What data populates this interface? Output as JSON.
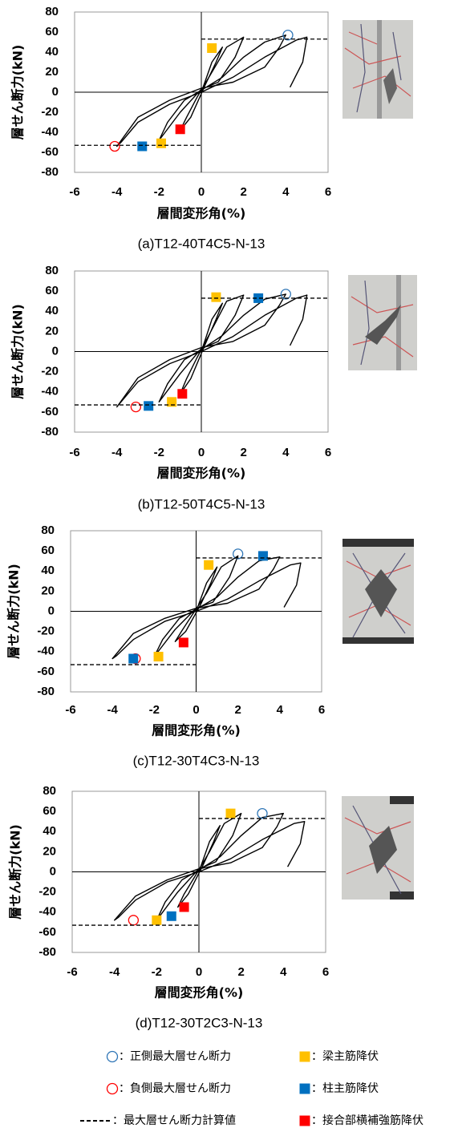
{
  "chart_data": [
    {
      "type": "line",
      "caption": "(a)T12-40T4C5-N-13",
      "y_label": "層せん断力(kN)",
      "x_label": "層間変形角(%)",
      "xlim": [
        -6,
        6
      ],
      "xticks": [
        -6,
        -4,
        -2,
        0,
        2,
        4,
        6
      ],
      "ylim": [
        -80,
        80
      ],
      "yticks": [
        -80,
        -60,
        -40,
        -20,
        0,
        20,
        40,
        60,
        80
      ],
      "curve": {
        "color": "#000000",
        "x": [
          0,
          0.5,
          1,
          0.7,
          0.2,
          -0.5,
          -1,
          -0.7,
          -0.2,
          0.5,
          1.2,
          2,
          1.6,
          0.8,
          0,
          -1,
          -2,
          -1.6,
          -0.8,
          0,
          1,
          2,
          3,
          4,
          3.7,
          3,
          1.5,
          0,
          -1.5,
          -3,
          -4,
          -3.8,
          -3,
          -1.5,
          0,
          1.5,
          3,
          4.5,
          5,
          4.8,
          4.2
        ],
        "y": [
          0,
          30,
          45,
          30,
          8,
          -25,
          -38,
          -25,
          -5,
          20,
          45,
          55,
          35,
          10,
          3,
          -20,
          -48,
          -30,
          -8,
          2,
          15,
          35,
          50,
          57,
          45,
          25,
          10,
          4,
          -8,
          -25,
          -54,
          -50,
          -30,
          -12,
          0,
          15,
          35,
          52,
          55,
          30,
          5
        ]
      },
      "series": [
        {
          "x": [
            4.1
          ],
          "y": [
            57
          ]
        },
        {
          "x": [
            0.5,
            -1.9
          ],
          "y": [
            44,
            -51
          ]
        },
        {
          "x": [
            -4.1
          ],
          "y": [
            -54
          ]
        },
        {
          "x": [
            -2.8
          ],
          "y": [
            -54
          ]
        },
        {
          "y": [
            53,
            -53
          ]
        },
        {
          "x": [
            -1.0
          ],
          "y": [
            -37
          ]
        }
      ]
    },
    {
      "type": "line",
      "caption": "(b)T12-50T4C5-N-13",
      "y_label": "層せん断力(kN)",
      "x_label": "層間変形角(%)",
      "xlim": [
        -6,
        6
      ],
      "xticks": [
        -6,
        -4,
        -2,
        0,
        2,
        4,
        6
      ],
      "ylim": [
        -80,
        80
      ],
      "yticks": [
        -80,
        -60,
        -40,
        -20,
        0,
        20,
        40,
        60,
        80
      ],
      "curve": {
        "color": "#000000",
        "x": [
          0,
          0.5,
          1,
          0.7,
          0.2,
          -0.5,
          -1,
          -0.7,
          -0.2,
          0.5,
          1.2,
          2,
          1.6,
          0.8,
          0,
          -1,
          -2,
          -1.6,
          -0.8,
          0,
          1,
          2,
          3,
          4,
          3.7,
          3,
          1.5,
          0,
          -1.5,
          -3,
          -4,
          -3.8,
          -3,
          -1.5,
          0,
          1.5,
          3,
          4.5,
          5,
          4.8,
          4.2
        ],
        "y": [
          0,
          32,
          48,
          32,
          8,
          -27,
          -42,
          -27,
          -6,
          22,
          50,
          56,
          36,
          10,
          3,
          -22,
          -50,
          -32,
          -8,
          2,
          16,
          36,
          52,
          57,
          46,
          26,
          10,
          4,
          -8,
          -26,
          -55,
          -50,
          -30,
          -12,
          0,
          15,
          36,
          53,
          56,
          32,
          6
        ]
      },
      "series": [
        {
          "x": [
            4.0
          ],
          "y": [
            57
          ]
        },
        {
          "x": [
            0.7,
            -1.4
          ],
          "y": [
            54,
            -50
          ]
        },
        {
          "x": [
            -3.1
          ],
          "y": [
            -55
          ]
        },
        {
          "x": [
            2.7,
            -2.5
          ],
          "y": [
            53,
            -54
          ]
        },
        {
          "y": [
            53,
            -53
          ]
        },
        {
          "x": [
            -0.9
          ],
          "y": [
            -42
          ]
        }
      ]
    },
    {
      "type": "line",
      "caption": "(c)T12-30T4C3-N-13",
      "y_label": "層せん断力(kN)",
      "x_label": "層間変形角(%)",
      "xlim": [
        -6,
        6
      ],
      "xticks": [
        -6,
        -4,
        -2,
        0,
        2,
        4,
        6
      ],
      "ylim": [
        -80,
        80
      ],
      "yticks": [
        -80,
        -60,
        -40,
        -20,
        0,
        20,
        40,
        60,
        80
      ],
      "curve": {
        "color": "#000000",
        "x": [
          0,
          0.5,
          1,
          0.7,
          0.2,
          -0.5,
          -1,
          -0.7,
          -0.2,
          0.5,
          1.2,
          2,
          1.6,
          0.8,
          0,
          -1,
          -2,
          -1.6,
          -0.8,
          0,
          1,
          2,
          3,
          4,
          3.7,
          3,
          1.5,
          0,
          -1.5,
          -3,
          -4,
          -3.8,
          -3,
          -1.5,
          0,
          1.5,
          3,
          4.5,
          5,
          4.8,
          4.2
        ],
        "y": [
          0,
          28,
          44,
          28,
          6,
          -20,
          -30,
          -20,
          -4,
          18,
          44,
          55,
          34,
          9,
          3,
          -18,
          -45,
          -28,
          -7,
          2,
          14,
          34,
          50,
          54,
          42,
          22,
          8,
          3,
          -7,
          -22,
          -47,
          -44,
          -28,
          -10,
          0,
          12,
          30,
          46,
          48,
          26,
          4
        ]
      },
      "series": [
        {
          "x": [
            2.0
          ],
          "y": [
            57
          ]
        },
        {
          "x": [
            0.6,
            -1.8
          ],
          "y": [
            46,
            -45
          ]
        },
        {
          "x": [
            -2.9
          ],
          "y": [
            -47
          ]
        },
        {
          "x": [
            3.2,
            -3.0
          ],
          "y": [
            55,
            -47
          ]
        },
        {
          "y": [
            53,
            -53
          ]
        },
        {
          "x": [
            -0.6
          ],
          "y": [
            -31
          ]
        }
      ]
    },
    {
      "type": "line",
      "caption": "(d)T12-30T2C3-N-13",
      "y_label": "層せん断力(kN)",
      "x_label": "層間変形角(%)",
      "xlim": [
        -6,
        6
      ],
      "xticks": [
        -6,
        -4,
        -2,
        0,
        2,
        4,
        6
      ],
      "ylim": [
        -80,
        80
      ],
      "yticks": [
        -80,
        -60,
        -40,
        -20,
        0,
        20,
        40,
        60,
        80
      ],
      "curve": {
        "color": "#000000",
        "x": [
          0,
          0.5,
          1,
          0.7,
          0.2,
          -0.5,
          -1,
          -0.7,
          -0.2,
          0.5,
          1.2,
          2,
          1.6,
          0.8,
          0,
          -1,
          -2,
          -1.6,
          -0.8,
          0,
          1,
          2,
          3,
          4,
          3.7,
          3,
          1.5,
          0,
          -1.5,
          -3,
          -4,
          -3.8,
          -3,
          -1.5,
          0,
          1.5,
          3,
          4.5,
          5,
          4.8,
          4.2
        ],
        "y": [
          0,
          30,
          46,
          30,
          7,
          -22,
          -35,
          -22,
          -5,
          20,
          48,
          58,
          36,
          10,
          3,
          -20,
          -48,
          -30,
          -8,
          2,
          15,
          36,
          54,
          58,
          45,
          24,
          9,
          3,
          -8,
          -24,
          -48,
          -45,
          -28,
          -10,
          0,
          13,
          32,
          48,
          50,
          28,
          5
        ]
      },
      "series": [
        {
          "x": [
            3.0
          ],
          "y": [
            58
          ]
        },
        {
          "x": [
            1.5,
            -2.0
          ],
          "y": [
            58,
            -48
          ]
        },
        {
          "x": [
            -3.1
          ],
          "y": [
            -48
          ]
        },
        {
          "x": [
            -1.3
          ],
          "y": [
            -44
          ]
        },
        {
          "y": [
            53,
            -53
          ]
        },
        {
          "x": [
            -0.7
          ],
          "y": [
            -35
          ]
        }
      ]
    }
  ],
  "legend": [
    {
      "label": "：正側最大層せん断力",
      "color": "#2e75b6",
      "marker": "circle"
    },
    {
      "label": "：梁主筋降伏",
      "color": "#ffc000",
      "marker": "square"
    },
    {
      "label": "：負側最大層せん断力",
      "color": "#ff0000",
      "marker": "circle"
    },
    {
      "label": "：柱主筋降伏",
      "color": "#0070c0",
      "marker": "square"
    },
    {
      "label": "：最大層せん断力計算値",
      "color": "#000000",
      "marker": "dash"
    },
    {
      "label": "：接合部横補強筋降伏",
      "color": "#ff0000",
      "marker": "square"
    }
  ]
}
